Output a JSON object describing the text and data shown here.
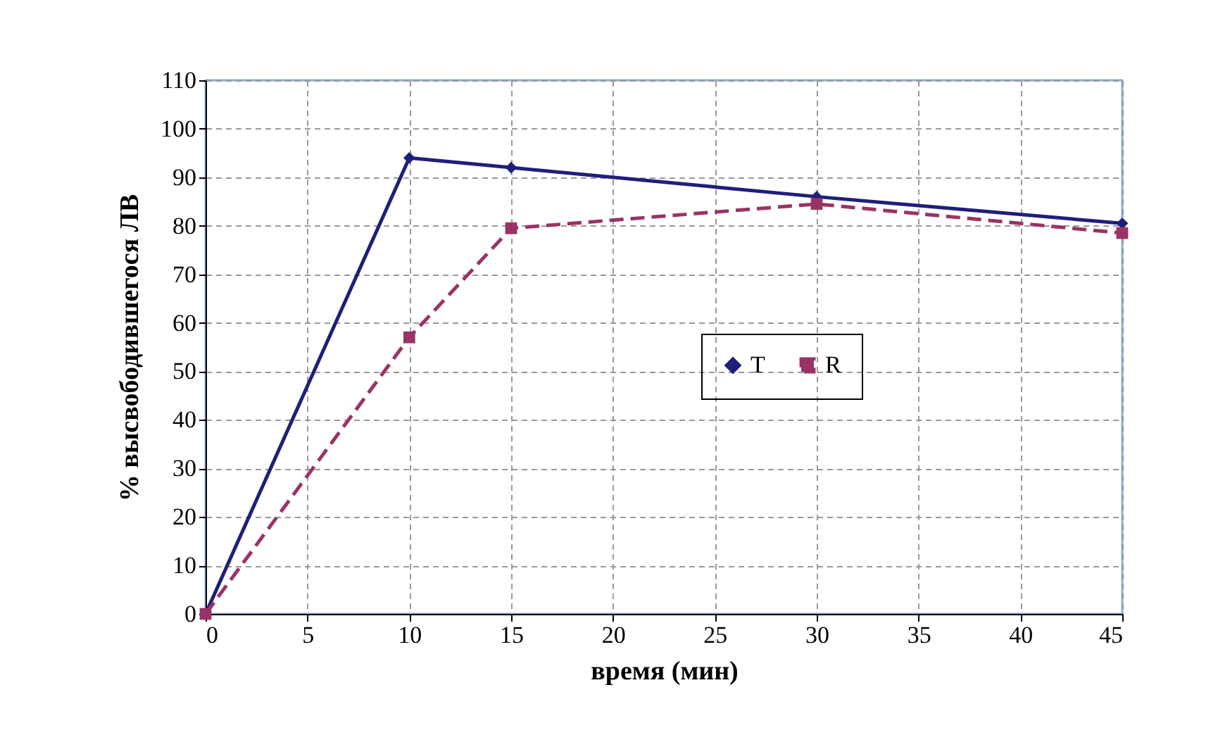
{
  "chart_data": {
    "type": "line",
    "xlabel": "время (мин)",
    "ylabel": "% высвободившегося ЛВ",
    "x": [
      0,
      10,
      15,
      30,
      45
    ],
    "series": [
      {
        "name": "T",
        "color": "#1f1f7a",
        "values": [
          0,
          94,
          92,
          86,
          80.5
        ],
        "marker": "diamond",
        "line_style": "solid"
      },
      {
        "name": "R",
        "color": "#993366",
        "values": [
          0,
          57,
          79.5,
          84.5,
          78.5
        ],
        "marker": "square",
        "line_style": "dashed"
      }
    ],
    "xlim": [
      0,
      45
    ],
    "xticks": [
      0,
      5,
      10,
      15,
      20,
      25,
      30,
      35,
      40,
      45
    ],
    "ylim": [
      0,
      110
    ],
    "yticks": [
      0,
      10,
      20,
      30,
      40,
      50,
      60,
      70,
      80,
      90,
      100,
      110
    ],
    "grid": true,
    "legend": "right"
  }
}
